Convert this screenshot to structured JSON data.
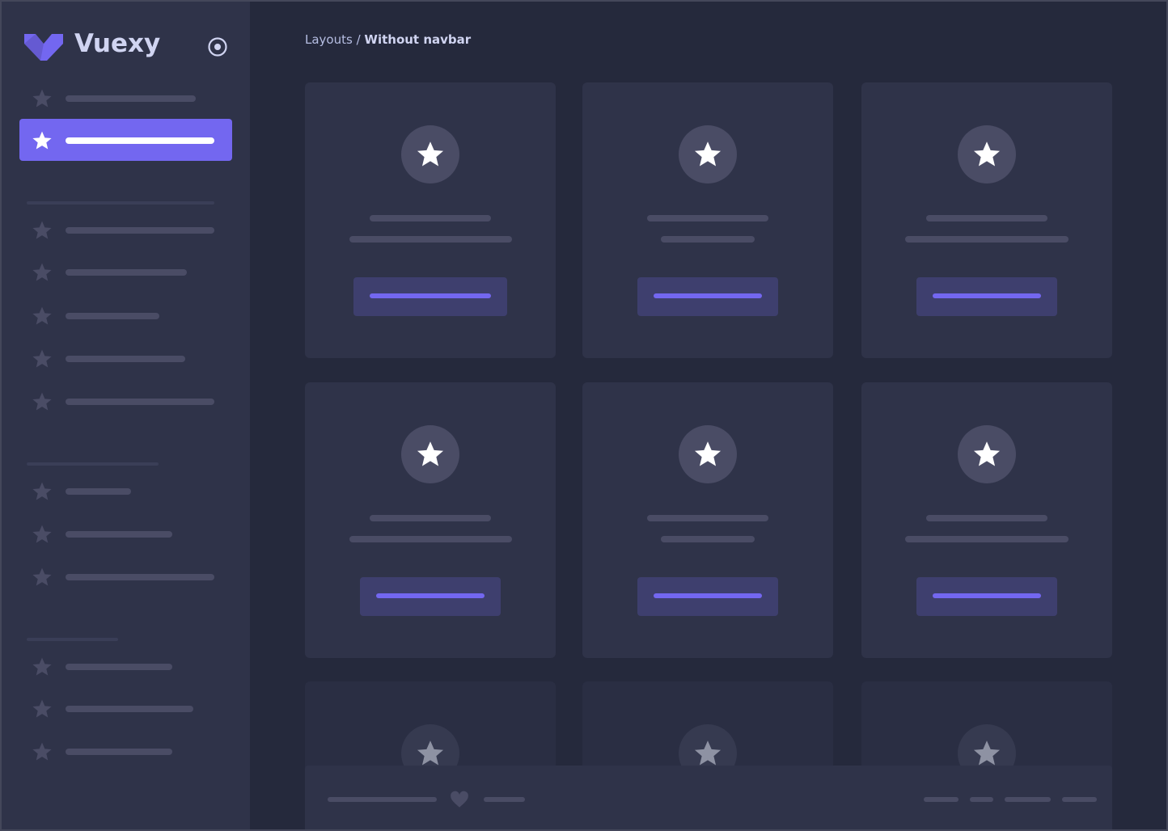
{
  "brand": {
    "name": "Vuexy",
    "logo_color": "#7367f0"
  },
  "breadcrumb": {
    "parent": "Layouts / ",
    "current": "Without navbar"
  },
  "colors": {
    "accent": "#7367f0",
    "sidebar_bg": "#2f3349",
    "main_bg": "#25293c",
    "card_bg": "#2f3349"
  },
  "icons": {
    "menu_item": "star-icon",
    "toggle": "radio-circle-icon",
    "footer": "heart-icon"
  }
}
